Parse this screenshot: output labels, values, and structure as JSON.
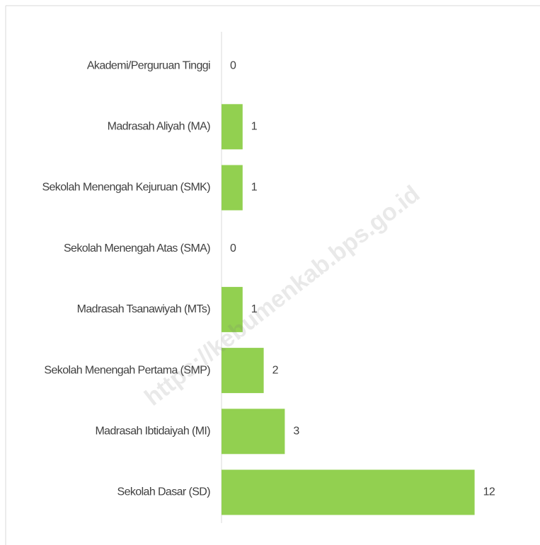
{
  "chart_data": {
    "type": "hbar",
    "categories": [
      "Akademi/Perguruan Tinggi",
      "Madrasah Aliyah (MA)",
      "Sekolah Menengah Kejuruan (SMK)",
      "Sekolah Menengah Atas (SMA)",
      "Madrasah Tsanawiyah (MTs)",
      "Sekolah Menengah Pertama (SMP)",
      "Madrasah Ibtidaiyah (MI)",
      "Sekolah Dasar (SD)"
    ],
    "values": [
      0,
      1,
      1,
      0,
      1,
      2,
      3,
      12
    ],
    "color": "#92d050",
    "watermark": "https://kebumenkab.bps.go.id"
  }
}
